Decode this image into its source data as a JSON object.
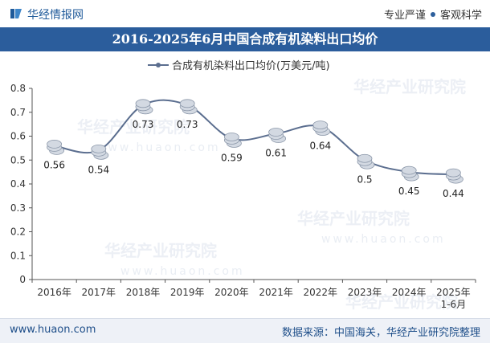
{
  "header": {
    "brand": "华经情报网",
    "motto_left": "专业严谨",
    "motto_right": "客观科学"
  },
  "footer": {
    "site": "www.huaon.com",
    "source": "数据来源：中国海关，华经产业研究院整理"
  },
  "watermark": {
    "text": "华经产业研究院",
    "url": "www.huaon.com"
  },
  "colors": {
    "title_bg": "#2b5d9c",
    "line": "#5b6e8f",
    "coin": "#cfd6df"
  },
  "chart_data": {
    "type": "line",
    "title": "2016-2025年6月中国合成有机染料出口均价",
    "legend": "top-center",
    "categories": [
      "2016年",
      "2017年",
      "2018年",
      "2019年",
      "2020年",
      "2021年",
      "2022年",
      "2023年",
      "2024年",
      "2025年\n1-6月"
    ],
    "series": [
      {
        "name": "合成有机染料出口均价(万美元/吨)",
        "values": [
          0.56,
          0.54,
          0.73,
          0.73,
          0.59,
          0.61,
          0.64,
          0.5,
          0.45,
          0.44
        ],
        "labels": [
          "0.56",
          "0.54",
          "0.73",
          "0.73",
          "0.59",
          "0.61",
          "0.64",
          "0.5",
          "0.45",
          "0.44"
        ]
      }
    ],
    "yticks": [
      "0",
      "0.1",
      "0.2",
      "0.3",
      "0.4",
      "0.5",
      "0.6",
      "0.7",
      "0.8"
    ],
    "ylim": [
      0,
      0.8
    ],
    "grid": false
  }
}
